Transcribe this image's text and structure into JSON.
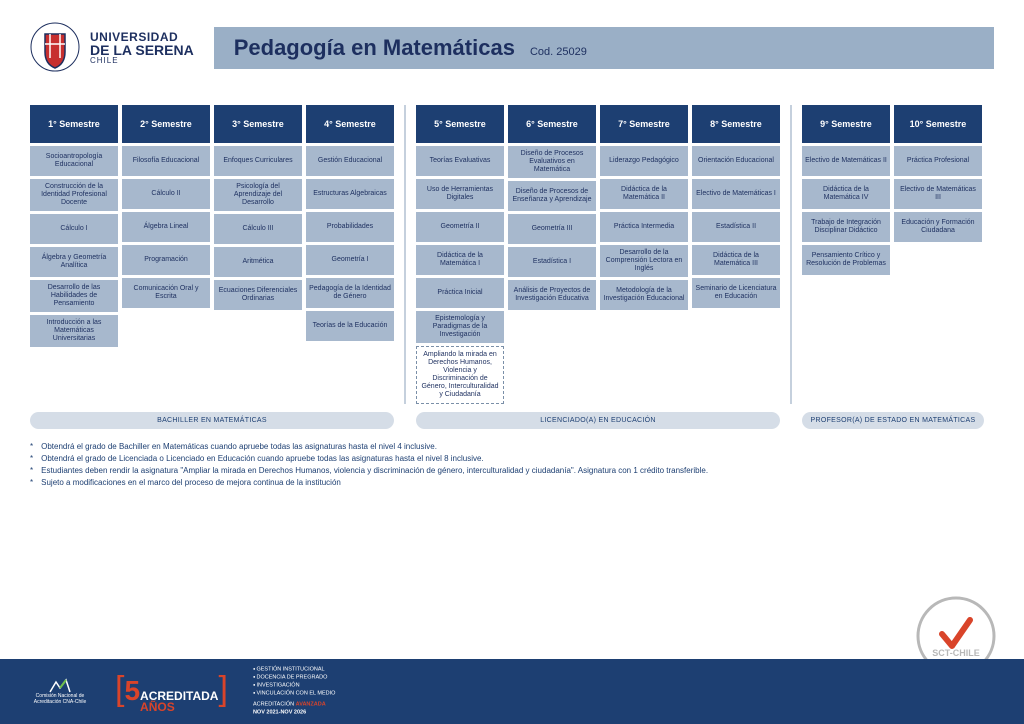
{
  "university": {
    "line1": "UNIVERSIDAD",
    "line2": "DE LA SERENA",
    "line3": "CHILE"
  },
  "program": {
    "title": "Pedagogía en Matemáticas",
    "code": "Cod. 25029"
  },
  "colors": {
    "header_box": "#9aafc6",
    "sem_head": "#1d3f72",
    "course_box": "#a7b8cd",
    "text_dark": "#1d2f5f",
    "footer": "#1d3f72",
    "accent_red": "#d9442a"
  },
  "groups": [
    {
      "stage": "BACHILLER EN MATEMÁTICAS",
      "semesters": [
        {
          "name": "1° Semestre",
          "courses": [
            "Socioantropología Educacional",
            "Construcción de la Identidad Profesional Docente",
            "Cálculo I",
            "Álgebra y Geometría Analítica",
            "Desarrollo de las Habilidades de Pensamiento",
            "Introducción a las Matemáticas Universitarias"
          ]
        },
        {
          "name": "2° Semestre",
          "courses": [
            "Filosofía Educacional",
            "Cálculo II",
            "Álgebra Lineal",
            "Programación",
            "Comunicación Oral y Escrita"
          ]
        },
        {
          "name": "3° Semestre",
          "courses": [
            "Enfoques Curriculares",
            "Psicología del Aprendizaje del Desarrollo",
            "Cálculo III",
            "Aritmética",
            "Ecuaciones Diferenciales Ordinarias"
          ]
        },
        {
          "name": "4° Semestre",
          "courses": [
            "Gestión Educacional",
            "Estructuras Algebraicas",
            "Probabilidades",
            "Geometría I",
            "Pedagogía de la Identidad de Género",
            "Teorías de la Educación"
          ]
        }
      ]
    },
    {
      "stage": "LICENCIADO(A) EN EDUCACIÓN",
      "semesters": [
        {
          "name": "5° Semestre",
          "courses": [
            "Teorías Evaluativas",
            "Uso de Herramientas Digitales",
            "Geometría II",
            "Didáctica de la Matemática I",
            "Práctica Inicial",
            "Epistemología y Paradigmas de la Investigación"
          ],
          "dashed": "Ampliando la mirada en Derechos Humanos, Violencia y Discriminación de Género, Interculturalidad y Ciudadanía"
        },
        {
          "name": "6° Semestre",
          "courses": [
            "Diseño de Procesos Evaluativos en Matemática",
            "Diseño de Procesos de Enseñanza y Aprendizaje",
            "Geometría III",
            "Estadística I",
            "Análisis de Proyectos de Investigación Educativa"
          ]
        },
        {
          "name": "7° Semestre",
          "courses": [
            "Liderazgo Pedagógico",
            "Didáctica de la Matemática II",
            "Práctica Intermedia",
            "Desarrollo de la Comprensión Lectora en Inglés",
            "Metodología de la Investigación Educacional"
          ]
        },
        {
          "name": "8° Semestre",
          "courses": [
            "Orientación Educacional",
            "Electivo de Matemáticas I",
            "Estadística II",
            "Didáctica de la Matemática III",
            "Seminario de Licenciatura en Educación"
          ]
        }
      ]
    },
    {
      "stage": "PROFESOR(A) DE ESTADO EN MATEMÁTICAS",
      "semesters": [
        {
          "name": "9° Semestre",
          "courses": [
            "Electivo de Matemáticas II",
            "Didáctica de la Matemática IV",
            "Trabajo de Integración Disciplinar Didáctico",
            "Pensamiento Crítico y Resolución de Problemas"
          ]
        },
        {
          "name": "10° Semestre",
          "courses": [
            "Práctica Profesional",
            "Electivo de Matemáticas III",
            "Educación y Formación Ciudadana"
          ]
        }
      ]
    }
  ],
  "notes": [
    "Obtendrá el grado de Bachiller en Matemáticas cuando apruebe todas las asignaturas hasta el nivel 4 inclusive.",
    "Obtendrá el grado de Licenciada o Licenciado en Educación cuando apruebe todas las asignaturas hasta el nivel 8 inclusive.",
    "Estudiantes deben rendir la asignatura \"Ampliar la mirada en Derechos Humanos, violencia y discriminación de género, interculturalidad y ciudadanía\". Asignatura con 1 crédito transferible.",
    "Sujeto a modificaciones en el marco del proceso de mejora continua de la institución"
  ],
  "footer": {
    "cna": "Comisión Nacional de Acreditación CNA-Chile",
    "years": "5",
    "acred_top": "ACREDITADA",
    "acred_bot": "AÑOS",
    "items": [
      "GESTIÓN INSTITUCIONAL",
      "DOCENCIA DE PREGRADO",
      "INVESTIGACIÓN",
      "VINCULACIÓN CON EL MEDIO"
    ],
    "level_label": "ACREDITACIÓN ",
    "level_value": "AVANZADA",
    "dates": "NOV 2021-NOV 2026"
  },
  "stamp": "SCT-CHILE"
}
